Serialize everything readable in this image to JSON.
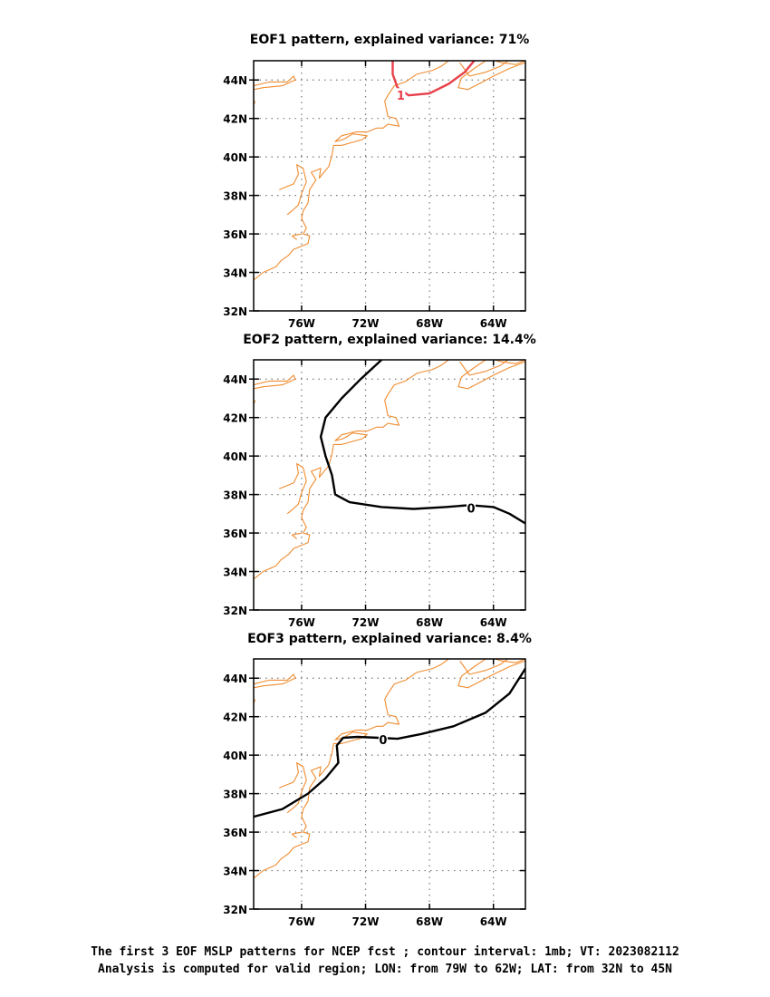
{
  "chart_data": [
    {
      "type": "contour",
      "title": "EOF1 pattern, explained variance: 71%",
      "x_ticks": [
        "76W",
        "72W",
        "68W",
        "64W"
      ],
      "x_tick_values": [
        -76,
        -72,
        -68,
        -64
      ],
      "y_ticks": [
        "44N",
        "42N",
        "40N",
        "38N",
        "36N",
        "34N",
        "32N"
      ],
      "y_tick_values": [
        44,
        42,
        40,
        38,
        36,
        34,
        32
      ],
      "xlim": [
        -79,
        -62
      ],
      "ylim": [
        32,
        45
      ],
      "grid": true,
      "contours": [
        {
          "label": "1",
          "color": "#e8404a",
          "points": [
            [
              -70.3,
              45.0
            ],
            [
              -70.3,
              44.3
            ],
            [
              -70.0,
              43.6
            ],
            [
              -69.3,
              43.2
            ],
            [
              -68.0,
              43.3
            ],
            [
              -66.8,
              43.8
            ],
            [
              -65.8,
              44.4
            ],
            [
              -65.2,
              45.0
            ]
          ],
          "label_at": [
            -69.8,
            43.2
          ]
        }
      ]
    },
    {
      "type": "contour",
      "title": "EOF2 pattern, explained variance: 14.4%",
      "x_ticks": [
        "76W",
        "72W",
        "68W",
        "64W"
      ],
      "x_tick_values": [
        -76,
        -72,
        -68,
        -64
      ],
      "y_ticks": [
        "44N",
        "42N",
        "40N",
        "38N",
        "36N",
        "34N",
        "32N"
      ],
      "y_tick_values": [
        44,
        42,
        40,
        38,
        36,
        34,
        32
      ],
      "xlim": [
        -79,
        -62
      ],
      "ylim": [
        32,
        45
      ],
      "grid": true,
      "contours": [
        {
          "label": "0",
          "color": "#000000",
          "points": [
            [
              -71.0,
              45.0
            ],
            [
              -72.3,
              44.0
            ],
            [
              -73.5,
              43.0
            ],
            [
              -74.5,
              42.0
            ],
            [
              -74.8,
              41.0
            ],
            [
              -74.5,
              40.0
            ],
            [
              -74.1,
              39.0
            ],
            [
              -73.9,
              38.0
            ],
            [
              -73.0,
              37.6
            ],
            [
              -71.0,
              37.35
            ],
            [
              -69.0,
              37.25
            ],
            [
              -67.0,
              37.35
            ],
            [
              -65.5,
              37.45
            ],
            [
              -64.0,
              37.35
            ],
            [
              -63.0,
              37.0
            ],
            [
              -62.0,
              36.5
            ]
          ],
          "label_at": [
            -65.4,
            37.3
          ]
        }
      ]
    },
    {
      "type": "contour",
      "title": "EOF3 pattern, explained variance: 8.4%",
      "x_ticks": [
        "76W",
        "72W",
        "68W",
        "64W"
      ],
      "x_tick_values": [
        -76,
        -72,
        -68,
        -64
      ],
      "y_ticks": [
        "44N",
        "42N",
        "40N",
        "38N",
        "36N",
        "34N",
        "32N"
      ],
      "y_tick_values": [
        44,
        42,
        40,
        38,
        36,
        34,
        32
      ],
      "xlim": [
        -79,
        -62
      ],
      "ylim": [
        32,
        45
      ],
      "grid": true,
      "contours": [
        {
          "label": "0",
          "color": "#000000",
          "points": [
            [
              -79.0,
              36.8
            ],
            [
              -77.2,
              37.2
            ],
            [
              -75.6,
              38.0
            ],
            [
              -74.5,
              38.8
            ],
            [
              -73.7,
              39.6
            ],
            [
              -73.8,
              40.5
            ],
            [
              -73.4,
              40.9
            ],
            [
              -72.5,
              40.95
            ],
            [
              -71.2,
              40.9
            ],
            [
              -70.0,
              40.85
            ],
            [
              -68.5,
              41.1
            ],
            [
              -66.5,
              41.5
            ],
            [
              -64.5,
              42.2
            ],
            [
              -63.0,
              43.2
            ],
            [
              -62.0,
              44.5
            ]
          ],
          "label_at": [
            -70.9,
            40.8
          ]
        }
      ]
    }
  ],
  "map_style": {
    "coast_color": "#f08c30",
    "grid_color": "#777777",
    "frame_color": "#000000"
  },
  "caption": {
    "line1": "The first 3 EOF MSLP patterns for NCEP fcst ; contour interval: 1mb; VT: 2023082112",
    "line2": "Analysis is computed for valid region; LON: from 79W to 62W; LAT: from 32N to 45N"
  }
}
